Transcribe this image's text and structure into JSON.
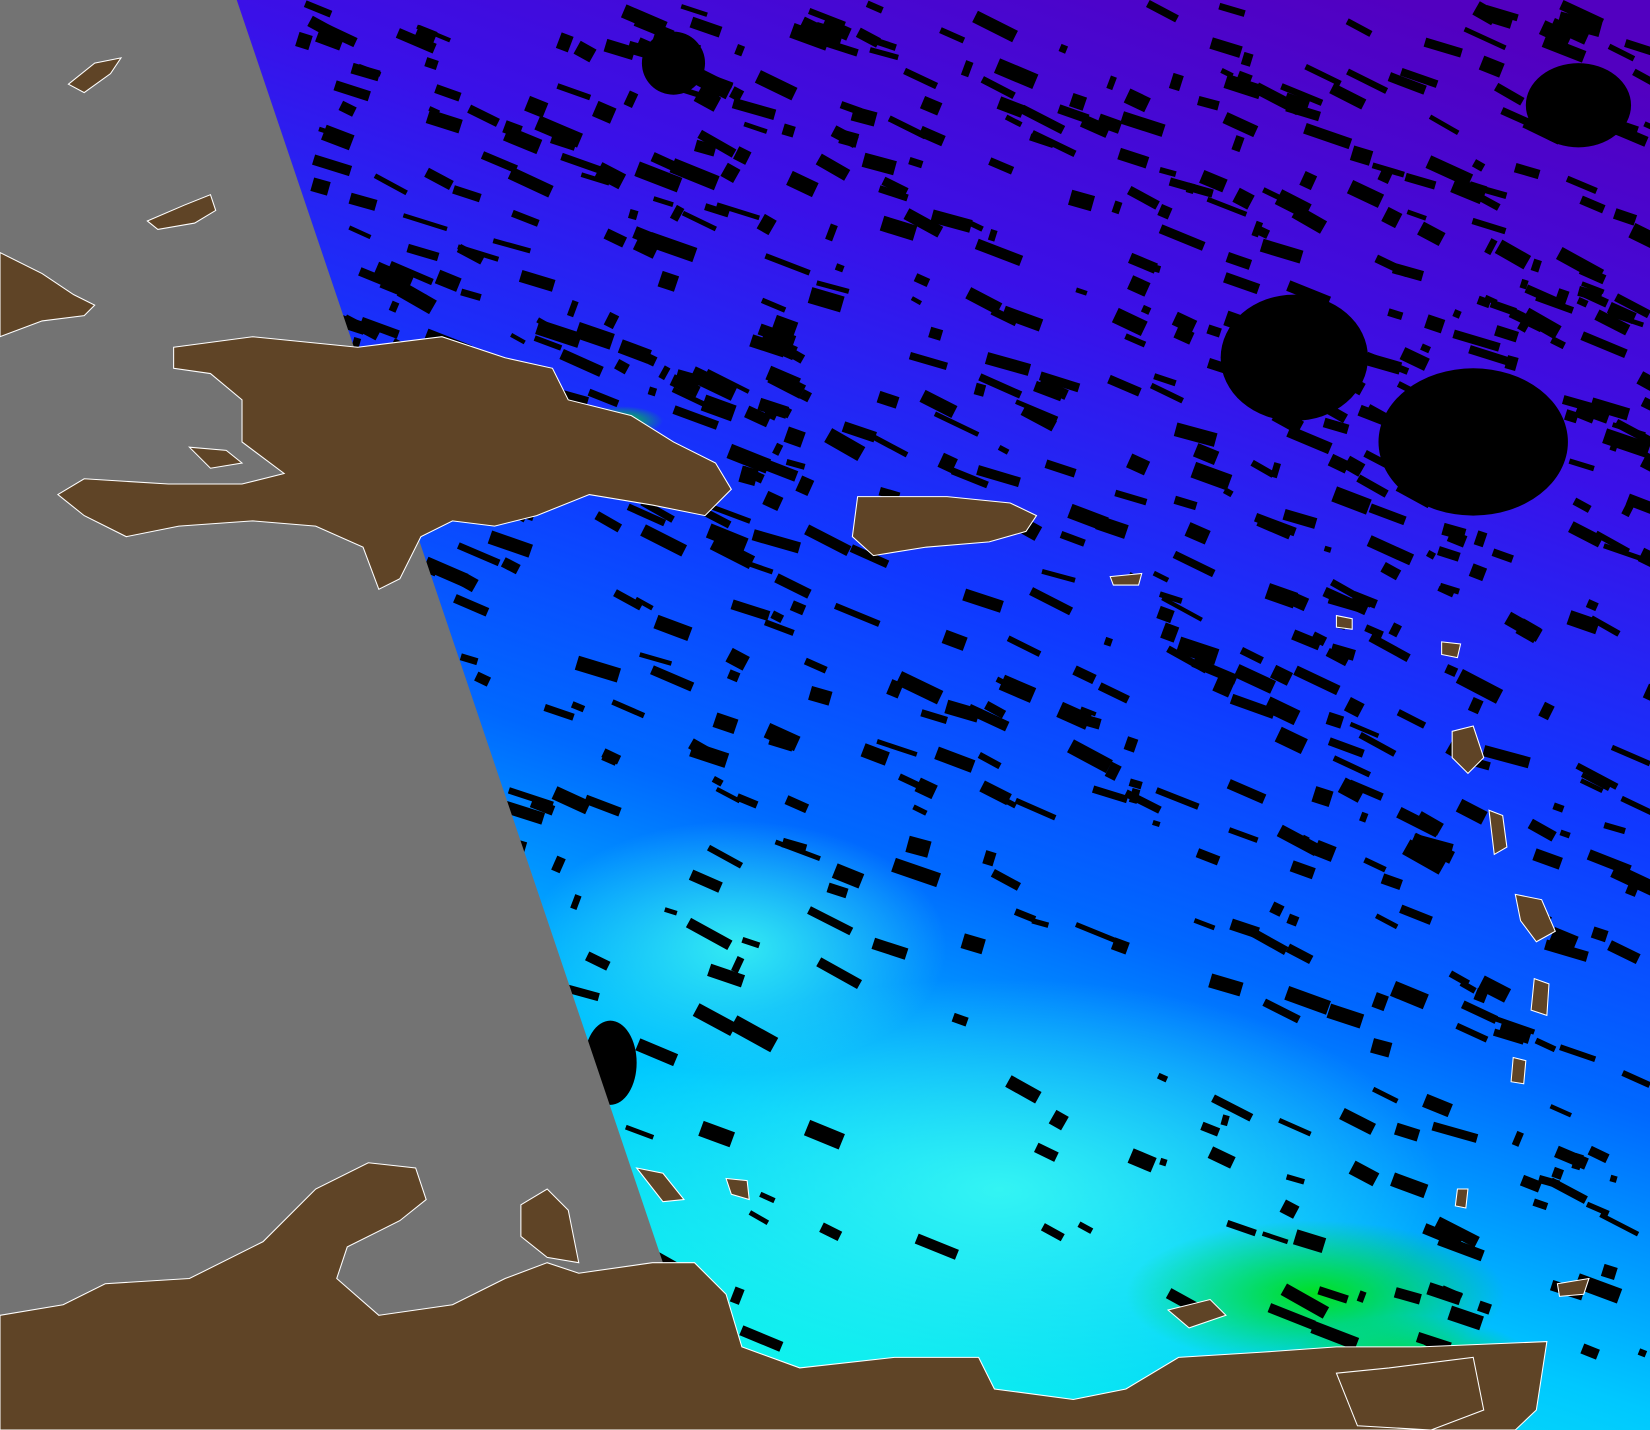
{
  "map": {
    "colors": {
      "no_data_swath": "#737373",
      "land": "#5f4426",
      "cloud_mask": "#000000",
      "coastline": "#ffffff",
      "ocean_low": "#5a00c8",
      "ocean_mid": "#0050ff",
      "ocean_high": "#00f0ff",
      "bloom": "#00e000",
      "bloom_peak": "#ffb000"
    }
  }
}
